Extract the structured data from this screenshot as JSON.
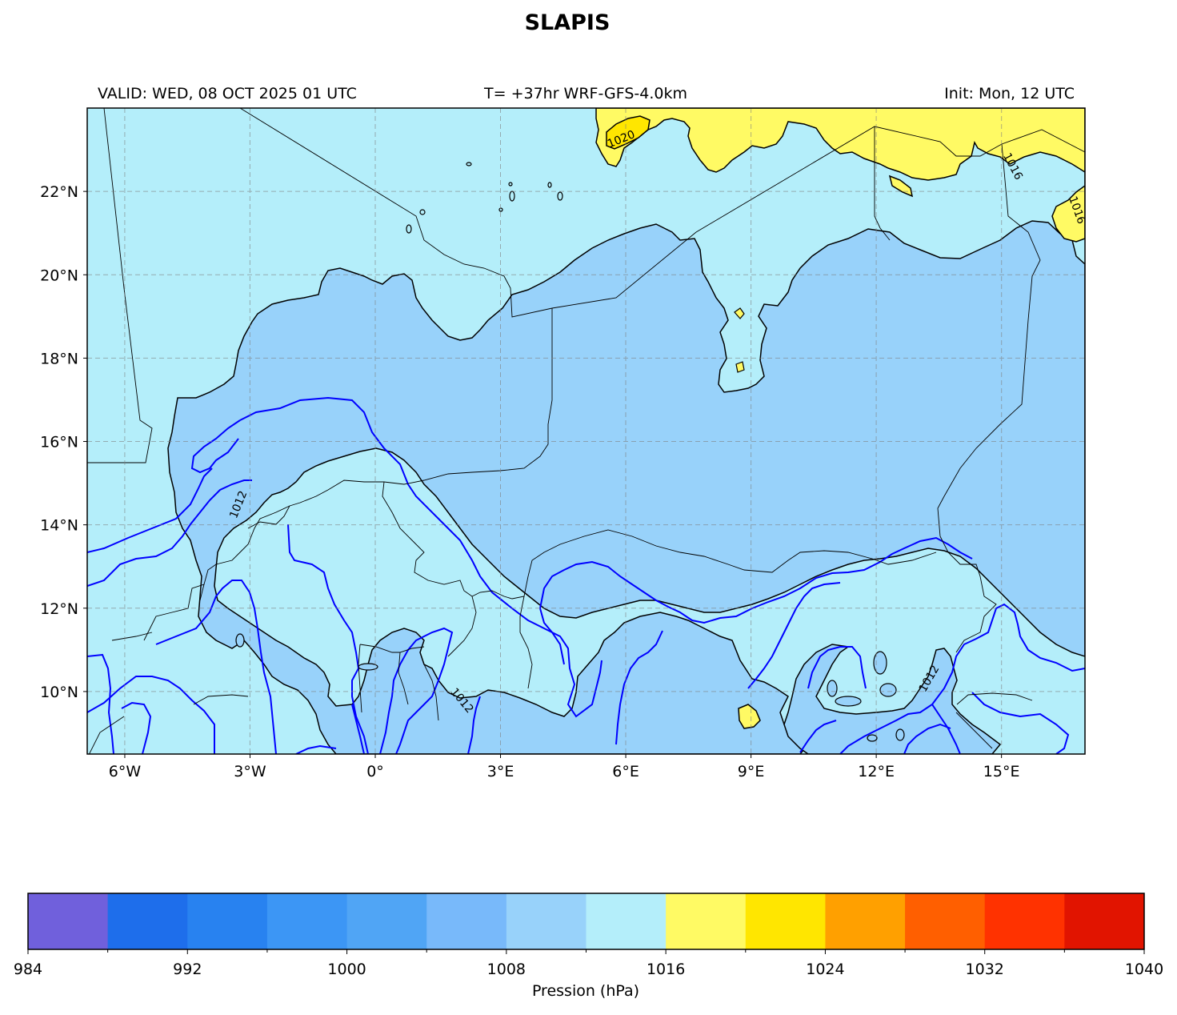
{
  "title": "SLAPIS",
  "header": {
    "valid": "VALID: WED, 08 OCT 2025 01 UTC",
    "run": "T= +37hr WRF-GFS-4.0km",
    "init": "Init: Mon, 12 UTC"
  },
  "map": {
    "extent": {
      "lon_min": -6.9,
      "lon_max": 17.0,
      "lat_min": 8.5,
      "lat_max": 24.0
    },
    "lon_ticks": [
      {
        "value": -6,
        "label": "6°W"
      },
      {
        "value": -3,
        "label": "3°W"
      },
      {
        "value": 0,
        "label": "0°"
      },
      {
        "value": 3,
        "label": "3°E"
      },
      {
        "value": 6,
        "label": "6°E"
      },
      {
        "value": 9,
        "label": "9°E"
      },
      {
        "value": 12,
        "label": "12°E"
      },
      {
        "value": 15,
        "label": "15°E"
      }
    ],
    "lat_ticks": [
      {
        "value": 22,
        "label": "22°N"
      },
      {
        "value": 20,
        "label": "20°N"
      },
      {
        "value": 18,
        "label": "18°N"
      },
      {
        "value": 16,
        "label": "16°N"
      },
      {
        "value": 14,
        "label": "14°N"
      },
      {
        "value": 12,
        "label": "12°N"
      },
      {
        "value": 10,
        "label": "10°N"
      }
    ],
    "gridlines": true,
    "contour_labels": [
      "1020",
      "1016",
      "1012",
      "1012",
      "1012",
      "1016"
    ],
    "colors": {
      "band_1008_1012": "#98d2fa",
      "band_1012_1016": "#b4eefa",
      "band_1016_1020": "#fffa64",
      "band_1020_1024": "#ffe600",
      "isobar_line": "#0000ff",
      "border_line": "#000000"
    }
  },
  "colorbar": {
    "label": "Pression (hPa)",
    "min": 984,
    "max": 1040,
    "bounds": [
      984,
      988,
      992,
      996,
      1000,
      1004,
      1008,
      1012,
      1016,
      1020,
      1024,
      1028,
      1032,
      1036,
      1040
    ],
    "labeled_ticks": [
      "984",
      "992",
      "1000",
      "1008",
      "1016",
      "1024",
      "1032",
      "1040"
    ],
    "colors": [
      "#7060dc",
      "#1e6eeb",
      "#2882f0",
      "#3c96f5",
      "#50a5f5",
      "#78b9fa",
      "#98d2fa",
      "#b4eefa",
      "#fffa64",
      "#ffe600",
      "#ffa000",
      "#ff5f00",
      "#ff3200",
      "#e11400"
    ]
  }
}
